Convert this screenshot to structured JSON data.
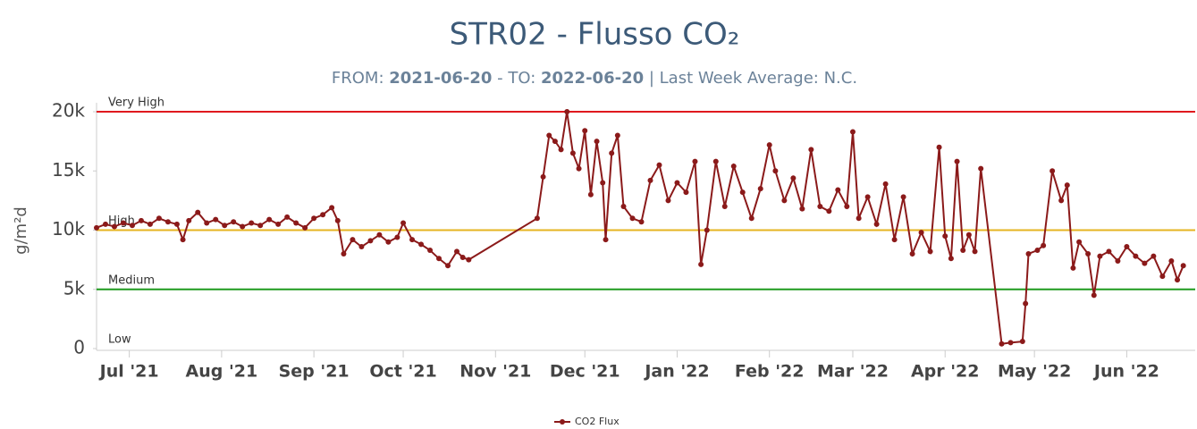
{
  "chart_data": {
    "type": "line",
    "title": "STR02 - Flusso CO₂",
    "subtitle": [
      "FROM: ",
      "2021-06-20",
      " - TO: ",
      "2022-06-20",
      " | Last Week Average: N.C."
    ],
    "y_label": "g/m²d",
    "xlim": [
      "2021-06-20",
      "2022-06-24"
    ],
    "xticks": [
      {
        "value": "2021-07-01",
        "label": "Jul '21"
      },
      {
        "value": "2021-08-01",
        "label": "Aug '21"
      },
      {
        "value": "2021-09-01",
        "label": "Sep '21"
      },
      {
        "value": "2021-10-01",
        "label": "Oct '21"
      },
      {
        "value": "2021-11-01",
        "label": "Nov '21"
      },
      {
        "value": "2021-12-01",
        "label": "Dec '21"
      },
      {
        "value": "2022-01-01",
        "label": "Jan '22"
      },
      {
        "value": "2022-02-01",
        "label": "Feb '22"
      },
      {
        "value": "2022-03-01",
        "label": "Mar '22"
      },
      {
        "value": "2022-04-01",
        "label": "Apr '22"
      },
      {
        "value": "2022-05-01",
        "label": "May '22"
      },
      {
        "value": "2022-06-01",
        "label": "Jun '22"
      }
    ],
    "ylim": [
      0,
      20000
    ],
    "yticks": [
      0,
      {
        "value": 5000,
        "label": "5k"
      },
      {
        "value": 10000,
        "label": "10k"
      },
      {
        "value": 15000,
        "label": "15k"
      },
      {
        "value": 20000,
        "label": "20k"
      }
    ],
    "thresholds": [
      {
        "label": "Very High",
        "value": 20000,
        "color": "#e0191e"
      },
      {
        "label": "High",
        "value": 10000,
        "color": "#e6b422"
      },
      {
        "label": "Medium",
        "value": 5000,
        "color": "#1e9a1e"
      },
      {
        "label": "Low",
        "value": 0
      }
    ],
    "x": [
      "2021-06-20",
      "2021-06-23",
      "2021-06-26",
      "2021-06-29",
      "2021-07-02",
      "2021-07-05",
      "2021-07-08",
      "2021-07-11",
      "2021-07-14",
      "2021-07-17",
      "2021-07-19",
      "2021-07-21",
      "2021-07-24",
      "2021-07-27",
      "2021-07-30",
      "2021-08-02",
      "2021-08-05",
      "2021-08-08",
      "2021-08-11",
      "2021-08-14",
      "2021-08-17",
      "2021-08-20",
      "2021-08-23",
      "2021-08-26",
      "2021-08-29",
      "2021-09-01",
      "2021-09-04",
      "2021-09-07",
      "2021-09-09",
      "2021-09-11",
      "2021-09-14",
      "2021-09-17",
      "2021-09-20",
      "2021-09-23",
      "2021-09-26",
      "2021-09-29",
      "2021-10-01",
      "2021-10-04",
      "2021-10-07",
      "2021-10-10",
      "2021-10-13",
      "2021-10-16",
      "2021-10-19",
      "2021-10-21",
      "2021-10-23",
      "2021-11-15",
      "2021-11-17",
      "2021-11-19",
      "2021-11-21",
      "2021-11-23",
      "2021-11-25",
      "2021-11-27",
      "2021-11-29",
      "2021-12-01",
      "2021-12-03",
      "2021-12-05",
      "2021-12-07",
      "2021-12-08",
      "2021-12-10",
      "2021-12-12",
      "2021-12-14",
      "2021-12-17",
      "2021-12-20",
      "2021-12-23",
      "2021-12-26",
      "2021-12-29",
      "2022-01-01",
      "2022-01-04",
      "2022-01-07",
      "2022-01-09",
      "2022-01-11",
      "2022-01-14",
      "2022-01-17",
      "2022-01-20",
      "2022-01-23",
      "2022-01-26",
      "2022-01-29",
      "2022-02-01",
      "2022-02-03",
      "2022-02-06",
      "2022-02-09",
      "2022-02-12",
      "2022-02-15",
      "2022-02-18",
      "2022-02-21",
      "2022-02-24",
      "2022-02-27",
      "2022-03-01",
      "2022-03-03",
      "2022-03-06",
      "2022-03-09",
      "2022-03-12",
      "2022-03-15",
      "2022-03-18",
      "2022-03-21",
      "2022-03-24",
      "2022-03-27",
      "2022-03-30",
      "2022-04-01",
      "2022-04-03",
      "2022-04-05",
      "2022-04-07",
      "2022-04-09",
      "2022-04-11",
      "2022-04-13",
      "2022-04-20",
      "2022-04-23",
      "2022-04-27",
      "2022-04-28",
      "2022-04-29",
      "2022-05-02",
      "2022-05-04",
      "2022-05-07",
      "2022-05-10",
      "2022-05-12",
      "2022-05-14",
      "2022-05-16",
      "2022-05-19",
      "2022-05-21",
      "2022-05-23",
      "2022-05-26",
      "2022-05-29",
      "2022-06-01",
      "2022-06-04",
      "2022-06-07",
      "2022-06-10",
      "2022-06-13",
      "2022-06-16",
      "2022-06-18",
      "2022-06-20"
    ],
    "series": [
      {
        "name": "CO2 Flux",
        "color": "#8b1a1a",
        "values": [
          10200,
          10500,
          10300,
          10600,
          10400,
          10800,
          10500,
          11000,
          10700,
          10500,
          9200,
          10800,
          11500,
          10600,
          10900,
          10400,
          10700,
          10300,
          10600,
          10400,
          10900,
          10500,
          11100,
          10600,
          10200,
          11000,
          11300,
          11900,
          10800,
          8000,
          9200,
          8600,
          9100,
          9600,
          9000,
          9400,
          10600,
          9200,
          8800,
          8300,
          7600,
          7000,
          8200,
          7700,
          7500,
          11000,
          14500,
          18000,
          17500,
          16800,
          20000,
          16500,
          15200,
          18400,
          13000,
          17500,
          14000,
          9200,
          16500,
          18000,
          12000,
          11000,
          10700,
          14200,
          15500,
          12500,
          14000,
          13200,
          15800,
          7100,
          10000,
          15800,
          12000,
          15400,
          13200,
          11000,
          13500,
          17200,
          15000,
          12500,
          14400,
          11800,
          16800,
          12000,
          11600,
          13400,
          12000,
          18300,
          11000,
          12800,
          10500,
          13900,
          9200,
          12800,
          8000,
          9800,
          8200,
          17000,
          9500,
          7600,
          15800,
          8300,
          9600,
          8200,
          15200,
          400,
          500,
          600,
          3800,
          8000,
          8300,
          8700,
          15000,
          12500,
          13800,
          6800,
          9000,
          8000,
          4500,
          7800,
          8200,
          7400,
          8600,
          7800,
          7200,
          7800,
          6100,
          7400,
          5800,
          7000
        ]
      }
    ]
  }
}
